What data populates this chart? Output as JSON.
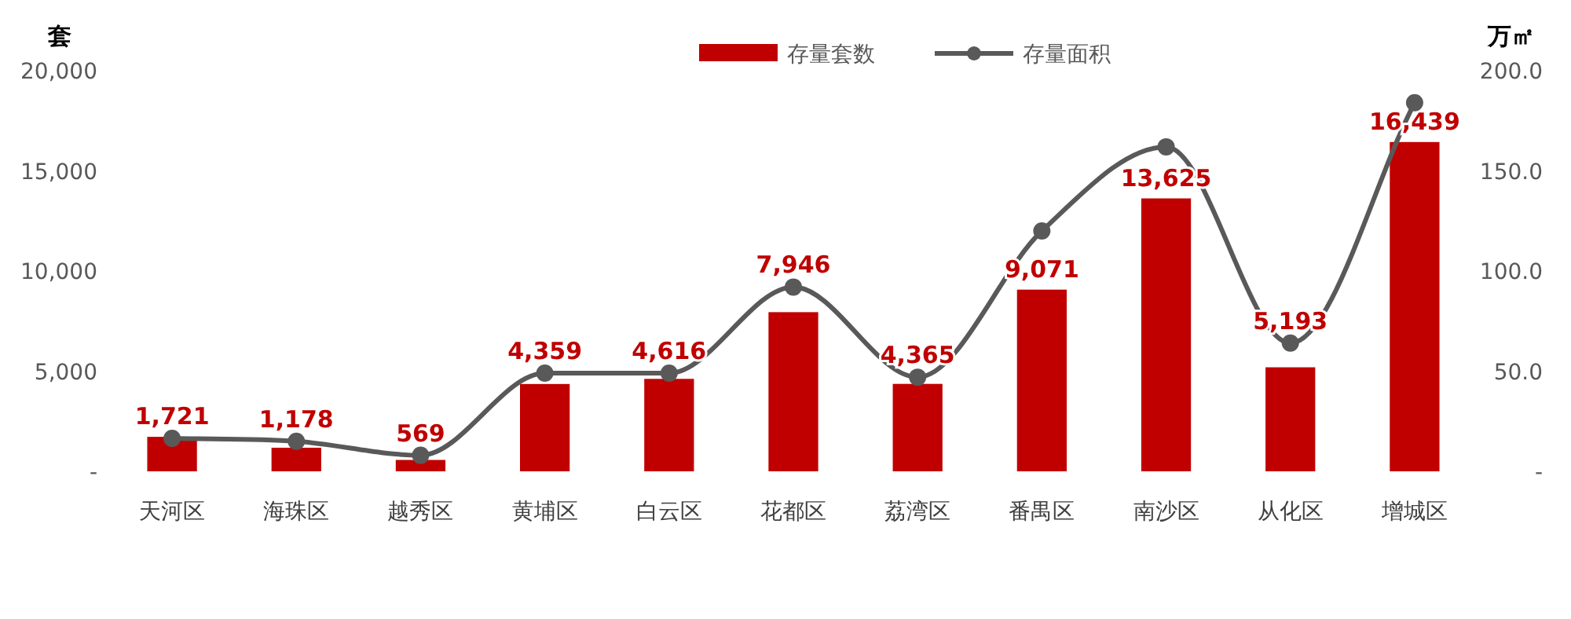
{
  "chart_data": {
    "type": "bar",
    "categories": [
      "天河区",
      "海珠区",
      "越秀区",
      "黄埔区",
      "白云区",
      "花都区",
      "荔湾区",
      "番禺区",
      "南沙区",
      "从化区",
      "增城区"
    ],
    "ylabel": "套",
    "y2label": "万㎡",
    "ylim": [
      0,
      20000
    ],
    "yticks": [
      {
        "value": 0,
        "label": "-"
      },
      {
        "value": 5000,
        "label": "5,000"
      },
      {
        "value": 10000,
        "label": "10,000"
      },
      {
        "value": 15000,
        "label": "15,000"
      },
      {
        "value": 20000,
        "label": "20,000"
      }
    ],
    "y2lim": [
      0,
      200
    ],
    "y2ticks": [
      {
        "value": 0,
        "label": "-"
      },
      {
        "value": 50,
        "label": "50.0"
      },
      {
        "value": 100,
        "label": "100.0"
      },
      {
        "value": 150,
        "label": "150.0"
      },
      {
        "value": 200,
        "label": "200.0"
      }
    ],
    "legend": "top",
    "grid": false,
    "series": [
      {
        "name": "存量套数",
        "type": "bar",
        "color": "#c00000",
        "values": [
          1721,
          1178,
          569,
          4359,
          4616,
          7946,
          4365,
          9071,
          13625,
          5193,
          16439
        ],
        "value_labels": [
          "1,721",
          "1,178",
          "569",
          "4,359",
          "4,616",
          "7,946",
          "4,365",
          "9,071",
          "13,625",
          "5,193",
          "16,439"
        ]
      },
      {
        "name": "存量面积",
        "type": "line",
        "axis": "y2",
        "color": "#595959",
        "marker": "circle",
        "values": [
          16.5,
          15,
          8,
          49,
          49,
          92,
          47,
          120,
          162,
          64,
          184
        ]
      }
    ]
  }
}
